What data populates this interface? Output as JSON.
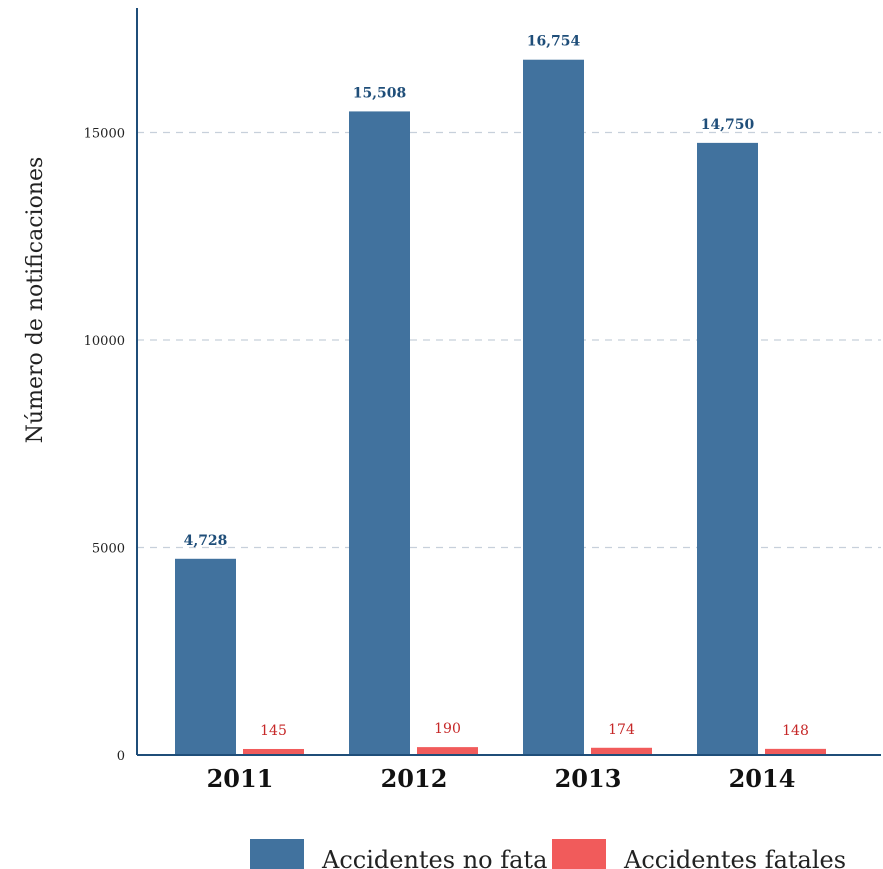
{
  "chart_data": {
    "type": "bar",
    "categories": [
      "2011",
      "2012",
      "2013",
      "2014"
    ],
    "series": [
      {
        "name": "Accidentes no fatales",
        "values": [
          4728,
          15508,
          16754,
          14750
        ],
        "labels": [
          "4,728",
          "15,508",
          "16,754",
          "14,750"
        ],
        "color": "#41729e",
        "label_color": "#1f4e79"
      },
      {
        "name": "Accidentes fatales",
        "values": [
          145,
          190,
          174,
          148
        ],
        "labels": [
          "145",
          "190",
          "174",
          "148"
        ],
        "color": "#f15b5b",
        "label_color": "#c62828"
      }
    ],
    "ylabel": "Número de notificaciones",
    "xlabel": "",
    "ylim": [
      0,
      18000
    ],
    "yticks": [
      0,
      5000,
      10000,
      15000
    ],
    "ytick_labels": [
      "0",
      "5000",
      "10000",
      "15000"
    ],
    "grid": "horizontal dashed",
    "legend": {
      "position": "bottom-right",
      "visible_text": [
        "Accidentes no fata",
        "Accidentes fatales"
      ]
    },
    "axis_color": "#1f4e79",
    "grid_color": "#c7d0db"
  }
}
